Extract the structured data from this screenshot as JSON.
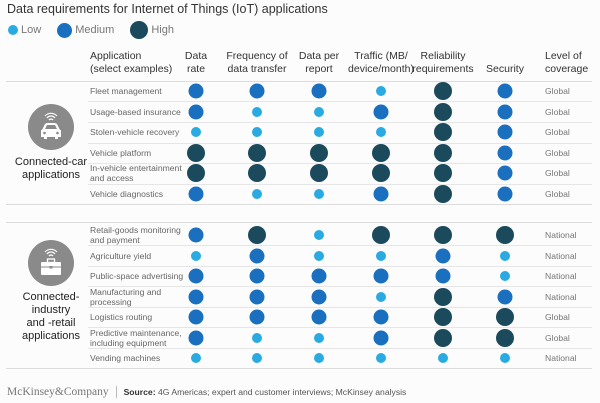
{
  "title": "Data requirements for Internet of Things (IoT) applications",
  "legend": [
    {
      "level": "low",
      "label": "Low"
    },
    {
      "level": "medium",
      "label": "Medium"
    },
    {
      "level": "high",
      "label": "High"
    }
  ],
  "colors": {
    "low": "#29abe2",
    "medium": "#1a6fbf",
    "high": "#1b4a5c"
  },
  "headers": {
    "application": [
      "Application",
      "(select examples)"
    ],
    "columns": [
      {
        "key": "data_rate",
        "lines": [
          "Data",
          "rate"
        ]
      },
      {
        "key": "frequency",
        "lines": [
          "Frequency of",
          "data transfer"
        ]
      },
      {
        "key": "data_per_report",
        "lines": [
          "Data per",
          "report"
        ]
      },
      {
        "key": "traffic",
        "lines": [
          "Traffic (MB/",
          "device/month)"
        ]
      },
      {
        "key": "reliability",
        "lines": [
          "Reliability",
          "requirements"
        ]
      },
      {
        "key": "security",
        "lines": [
          "",
          "Security"
        ]
      }
    ],
    "coverage": [
      "Level of",
      "coverage"
    ]
  },
  "chart_data": {
    "type": "table",
    "title": "Data requirements for Internet of Things (IoT) applications",
    "levels": [
      "Low",
      "Medium",
      "High"
    ],
    "columns": [
      "Data rate",
      "Frequency of data transfer",
      "Data per report",
      "Traffic (MB/device/month)",
      "Reliability requirements",
      "Security",
      "Level of coverage"
    ],
    "groups": [
      {
        "name": "Connected-car applications",
        "label_lines": [
          "Connected-car",
          "applications"
        ],
        "icon": "car-icon",
        "rows": [
          {
            "app": [
              "Fleet management"
            ],
            "values": [
              "Medium",
              "Medium",
              "Medium",
              "Low",
              "High",
              "Medium"
            ],
            "coverage": "Global"
          },
          {
            "app": [
              "Usage-based insurance"
            ],
            "values": [
              "Medium",
              "Low",
              "Low",
              "Medium",
              "High",
              "Medium"
            ],
            "coverage": "Global"
          },
          {
            "app": [
              "Stolen-vehicle recovery"
            ],
            "values": [
              "Low",
              "Low",
              "Low",
              "Low",
              "High",
              "Medium"
            ],
            "coverage": "Global"
          },
          {
            "app": [
              "Vehicle platform"
            ],
            "values": [
              "High",
              "High",
              "High",
              "High",
              "High",
              "Medium"
            ],
            "coverage": "Global"
          },
          {
            "app": [
              "In-vehicle entertainment",
              "and access"
            ],
            "values": [
              "High",
              "High",
              "High",
              "High",
              "High",
              "Medium"
            ],
            "coverage": "Global"
          },
          {
            "app": [
              "Vehicle diagnostics"
            ],
            "values": [
              "Medium",
              "Low",
              "Low",
              "Medium",
              "High",
              "Medium"
            ],
            "coverage": "Global"
          }
        ]
      },
      {
        "name": "Connected-industry and -retail applications",
        "label_lines": [
          "Connected-",
          "industry",
          "and -retail",
          "applications"
        ],
        "icon": "briefcase-icon",
        "rows": [
          {
            "app": [
              "Retail-goods monitoring",
              "and payment"
            ],
            "values": [
              "Medium",
              "High",
              "Low",
              "High",
              "High",
              "High"
            ],
            "coverage": "National"
          },
          {
            "app": [
              "Agriculture yield"
            ],
            "values": [
              "Low",
              "Medium",
              "Low",
              "Low",
              "Medium",
              "Low"
            ],
            "coverage": "National"
          },
          {
            "app": [
              "Public-space advertising"
            ],
            "values": [
              "Medium",
              "Medium",
              "Medium",
              "Medium",
              "Medium",
              "Low"
            ],
            "coverage": "National"
          },
          {
            "app": [
              "Manufacturing and",
              "processing"
            ],
            "values": [
              "Medium",
              "Medium",
              "Medium",
              "Low",
              "High",
              "Medium"
            ],
            "coverage": "National"
          },
          {
            "app": [
              "Logistics routing"
            ],
            "values": [
              "Medium",
              "Medium",
              "Medium",
              "Medium",
              "High",
              "High"
            ],
            "coverage": "Global"
          },
          {
            "app": [
              "Predictive maintenance,",
              "including equipment"
            ],
            "values": [
              "Medium",
              "Low",
              "Low",
              "Medium",
              "High",
              "High"
            ],
            "coverage": "Global"
          },
          {
            "app": [
              "Vending machines"
            ],
            "values": [
              "Low",
              "Low",
              "Low",
              "Low",
              "Low",
              "Low"
            ],
            "coverage": "National"
          }
        ]
      }
    ]
  },
  "footer": {
    "brand": "McKinsey&Company",
    "source_label": "Source:",
    "source_text": " 4G Americas; expert and customer interviews; McKinsey analysis"
  }
}
